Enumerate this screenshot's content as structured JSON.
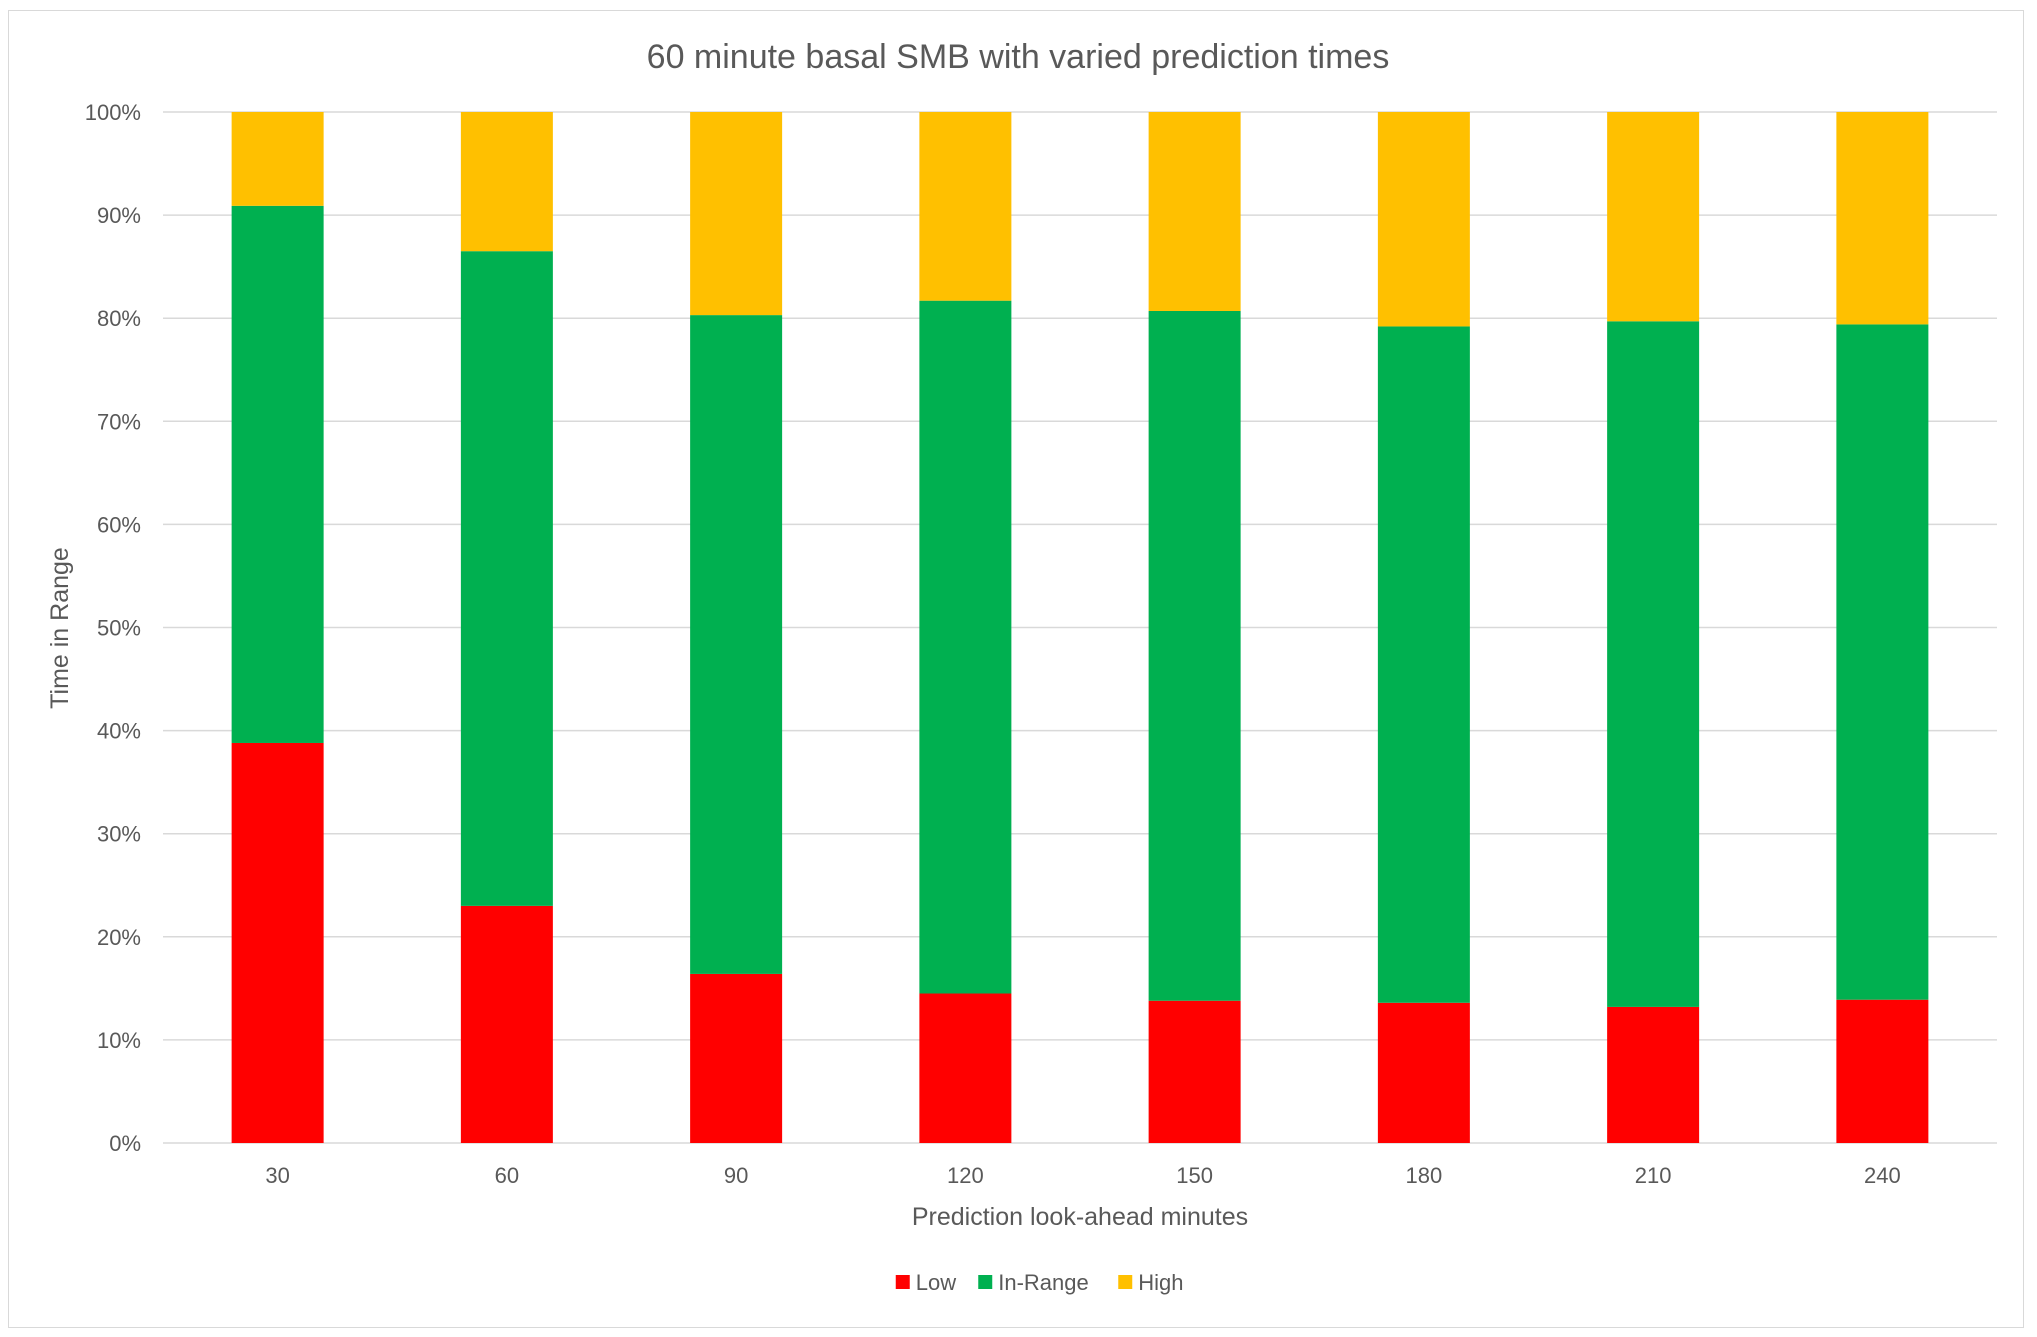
{
  "chart_data": {
    "type": "bar",
    "stacked": true,
    "percent_stacked": true,
    "title": "60 minute basal SMB with varied prediction times",
    "xlabel": "Prediction look-ahead minutes",
    "ylabel": "Time in Range",
    "categories": [
      "30",
      "60",
      "90",
      "120",
      "150",
      "180",
      "210",
      "240"
    ],
    "ylim": [
      0,
      100
    ],
    "yticks": [
      "0%",
      "10%",
      "20%",
      "30%",
      "40%",
      "50%",
      "60%",
      "70%",
      "80%",
      "90%",
      "100%"
    ],
    "grid": true,
    "legend_position": "bottom",
    "series": [
      {
        "name": "Low",
        "color": "#ff0000",
        "values": [
          38.8,
          23.0,
          16.4,
          14.5,
          13.8,
          13.6,
          13.2,
          13.9
        ]
      },
      {
        "name": "In-Range",
        "color": "#00b050",
        "values": [
          52.1,
          63.5,
          63.9,
          67.2,
          66.9,
          65.6,
          66.5,
          65.5
        ]
      },
      {
        "name": "High",
        "color": "#ffc000",
        "values": [
          9.1,
          13.5,
          19.7,
          18.3,
          19.3,
          20.8,
          20.3,
          20.6
        ]
      }
    ]
  }
}
